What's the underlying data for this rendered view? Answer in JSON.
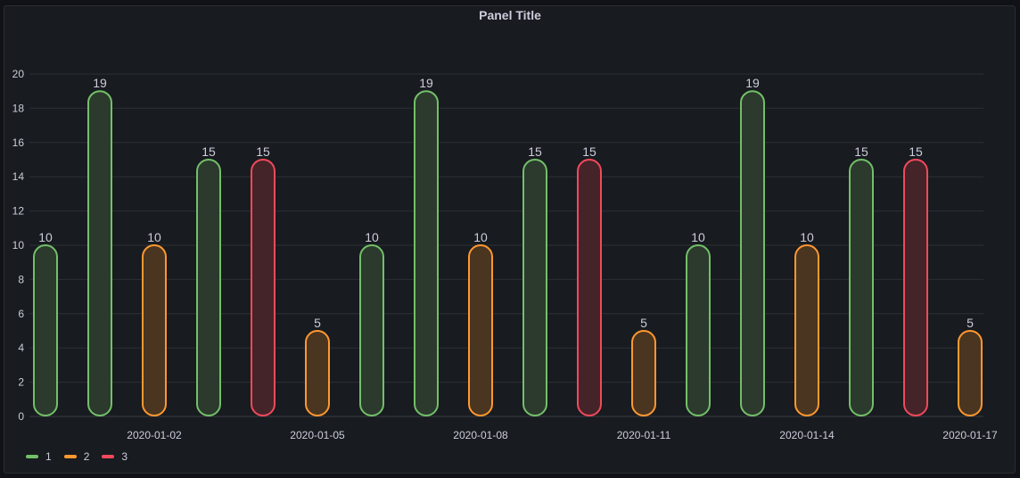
{
  "panel": {
    "title": "Panel Title"
  },
  "chart_data": {
    "type": "bar",
    "title": "Panel Title",
    "xlabel": "",
    "ylabel": "",
    "ylim": [
      0,
      20
    ],
    "yticks": [
      0,
      2,
      4,
      6,
      8,
      10,
      12,
      14,
      16,
      18,
      20
    ],
    "grid": true,
    "xtick_labels": [
      {
        "bar_index": 2,
        "label": "2020-01-02"
      },
      {
        "bar_index": 5,
        "label": "2020-01-05"
      },
      {
        "bar_index": 8,
        "label": "2020-01-08"
      },
      {
        "bar_index": 11,
        "label": "2020-01-11"
      },
      {
        "bar_index": 14,
        "label": "2020-01-14"
      },
      {
        "bar_index": 17,
        "label": "2020-01-17"
      }
    ],
    "values": [
      10,
      19,
      10,
      15,
      15,
      5,
      10,
      19,
      10,
      15,
      15,
      5,
      10,
      19,
      10,
      15,
      15,
      5
    ],
    "series_of_bar": [
      "1",
      "1",
      "2",
      "1",
      "3",
      "2",
      "1",
      "1",
      "2",
      "1",
      "3",
      "2",
      "1",
      "1",
      "2",
      "1",
      "3",
      "2"
    ],
    "legend_position": "bottom-left",
    "legend": [
      {
        "name": "1",
        "color": "#73bf69"
      },
      {
        "name": "2",
        "color": "#ff9830"
      },
      {
        "name": "3",
        "color": "#f2495c"
      }
    ]
  }
}
